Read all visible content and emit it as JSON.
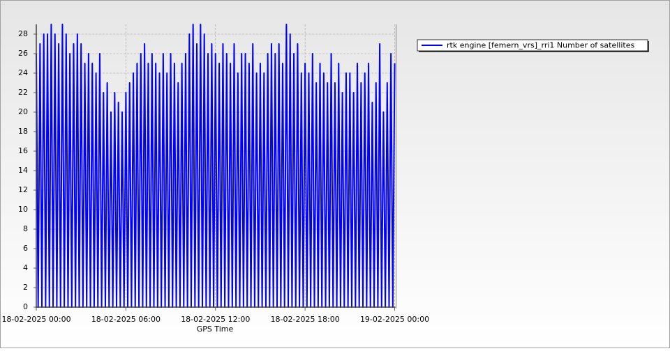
{
  "chart_data": {
    "type": "line",
    "x_label": "GPS Time",
    "x": [
      0,
      0.125,
      0.25,
      0.375,
      0.5,
      0.625,
      0.75,
      0.875,
      1,
      1.125,
      1.25,
      1.375,
      1.5,
      1.625,
      1.75,
      1.875,
      2,
      2.125,
      2.25,
      2.375,
      2.5,
      2.625,
      2.75,
      2.875,
      3,
      3.125,
      3.25,
      3.375,
      3.5,
      3.625,
      3.75,
      3.875,
      4,
      4.125,
      4.25,
      4.375,
      4.5,
      4.625,
      4.75,
      4.875,
      5,
      5.125,
      5.25,
      5.375,
      5.5,
      5.625,
      5.75,
      5.875,
      6,
      6.125,
      6.25,
      6.375,
      6.5,
      6.625,
      6.75,
      6.875,
      7,
      7.125,
      7.25,
      7.375,
      7.5,
      7.625,
      7.75,
      7.875,
      8,
      8.125,
      8.25,
      8.375,
      8.5,
      8.625,
      8.75,
      8.875,
      9,
      9.125,
      9.25,
      9.375,
      9.5,
      9.625,
      9.75,
      9.875,
      10,
      10.125,
      10.25,
      10.375,
      10.5,
      10.625,
      10.75,
      10.875,
      11,
      11.125,
      11.25,
      11.375,
      11.5,
      11.625,
      11.75,
      11.875,
      12,
      12.125,
      12.25,
      12.375,
      12.5,
      12.625,
      12.75,
      12.875,
      13,
      13.125,
      13.25,
      13.375,
      13.5,
      13.625,
      13.75,
      13.875,
      14,
      14.125,
      14.25,
      14.375,
      14.5,
      14.625,
      14.75,
      14.875,
      15,
      15.125,
      15.25,
      15.375,
      15.5,
      15.625,
      15.75,
      15.875,
      16,
      16.125,
      16.25,
      16.375,
      16.5,
      16.625,
      16.75,
      16.875,
      17,
      17.125,
      17.25,
      17.375,
      17.5,
      17.625,
      17.75,
      17.875,
      18,
      18.125,
      18.25,
      18.375,
      18.5,
      18.625,
      18.75,
      18.875,
      19,
      19.125,
      19.25,
      19.375,
      19.5,
      19.625,
      19.75,
      19.875,
      20,
      20.125,
      20.25,
      20.375,
      20.5,
      20.625,
      20.75,
      20.875,
      21,
      21.125,
      21.25,
      21.375,
      21.5,
      21.625,
      21.75,
      21.875,
      22,
      22.125,
      22.25,
      22.375,
      22.5,
      22.625,
      22.75,
      22.875,
      23,
      23.125,
      23.25,
      23.375,
      23.5,
      23.625,
      23.75,
      23.875,
      24
    ],
    "series": [
      {
        "name": "rtk engine [femern_vrs]_rri1 Number of satellites",
        "color": "#0000ff",
        "values": [
          26,
          0,
          27,
          0,
          28,
          0,
          28,
          0,
          29,
          0,
          28,
          0,
          27,
          0,
          29,
          0,
          28,
          0,
          26,
          0,
          27,
          0,
          28,
          0,
          27,
          0,
          25,
          0,
          26,
          0,
          25,
          0,
          24,
          0,
          26,
          0,
          22,
          0,
          23,
          0,
          20,
          0,
          22,
          0,
          21,
          0,
          20,
          0,
          22,
          0,
          23,
          0,
          24,
          0,
          25,
          0,
          26,
          0,
          27,
          0,
          25,
          0,
          26,
          0,
          25,
          0,
          24,
          0,
          26,
          0,
          24,
          0,
          26,
          0,
          25,
          0,
          23,
          0,
          25,
          0,
          26,
          0,
          28,
          0,
          29,
          0,
          27,
          0,
          29,
          0,
          28,
          0,
          26,
          0,
          27,
          0,
          26,
          0,
          25,
          0,
          27,
          0,
          26,
          0,
          25,
          0,
          27,
          0,
          24,
          0,
          26,
          0,
          26,
          0,
          25,
          0,
          27,
          0,
          24,
          0,
          25,
          0,
          24,
          0,
          26,
          0,
          27,
          0,
          26,
          0,
          27,
          0,
          25,
          0,
          29,
          0,
          28,
          0,
          26,
          0,
          27,
          0,
          24,
          0,
          25,
          0,
          24,
          0,
          26,
          0,
          23,
          0,
          25,
          0,
          24,
          0,
          23,
          0,
          26,
          0,
          23,
          0,
          25,
          0,
          22,
          0,
          24,
          0,
          24,
          0,
          22,
          0,
          25,
          0,
          23,
          0,
          24,
          0,
          25,
          0,
          21,
          0,
          23,
          0,
          27,
          0,
          20,
          0,
          23,
          0,
          26,
          0,
          25
        ]
      }
    ],
    "xlim": [
      0,
      24
    ],
    "xticks": [
      {
        "value": 0,
        "label": "18-02-2025 00:00"
      },
      {
        "value": 6,
        "label": "18-02-2025 06:00"
      },
      {
        "value": 12,
        "label": "18-02-2025 12:00"
      },
      {
        "value": 18,
        "label": "18-02-2025 18:00"
      },
      {
        "value": 24,
        "label": "19-02-2025 00:00"
      }
    ],
    "ylim": [
      0,
      29
    ],
    "yticks": [
      0,
      2,
      4,
      6,
      8,
      10,
      12,
      14,
      16,
      18,
      20,
      22,
      24,
      26,
      28
    ],
    "grid": true,
    "legend": "right"
  }
}
